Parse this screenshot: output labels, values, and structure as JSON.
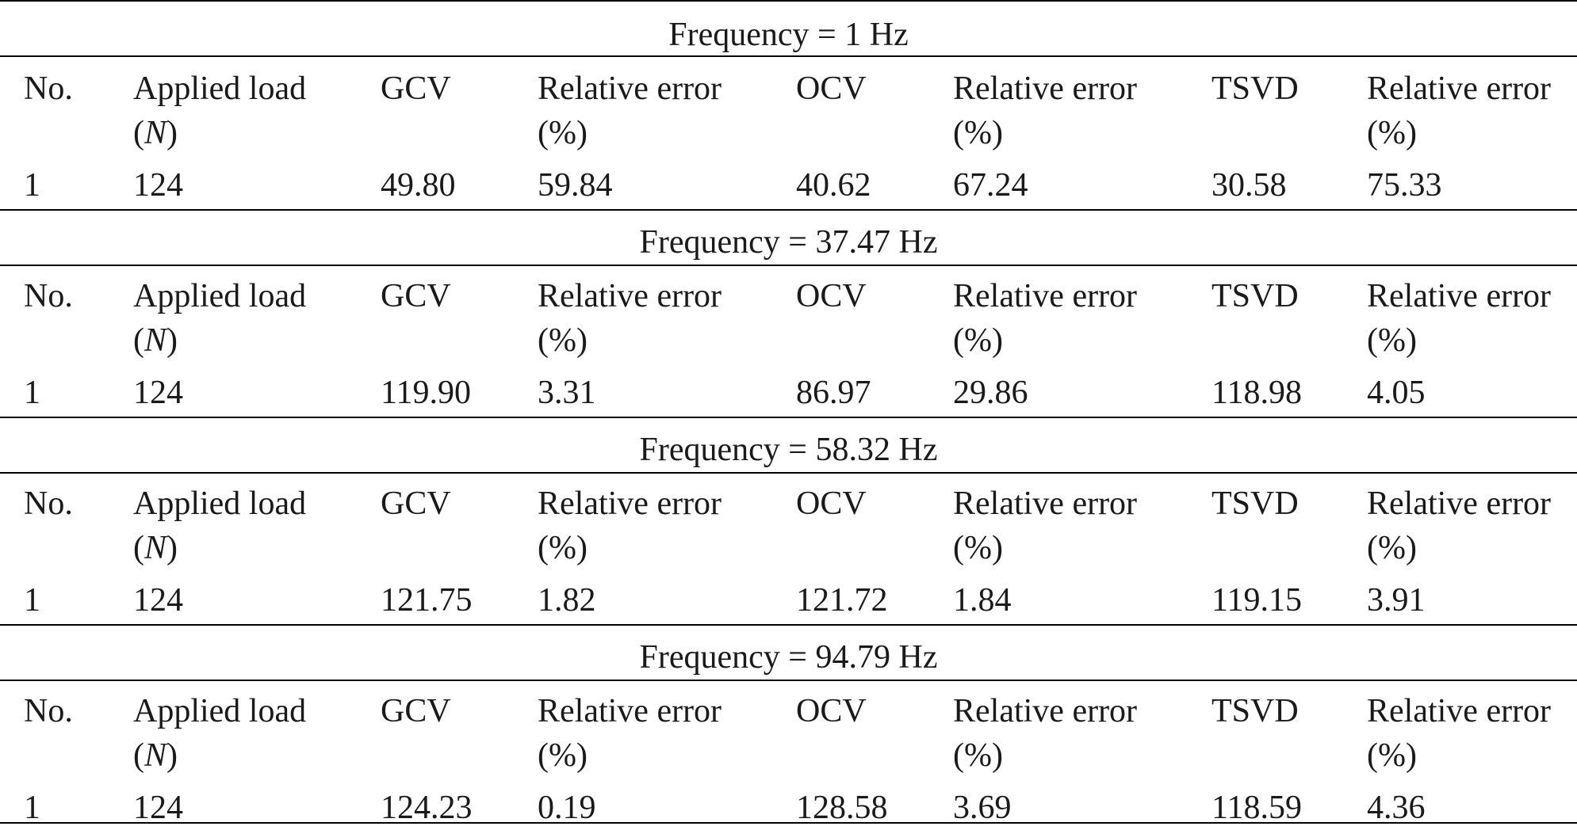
{
  "table": {
    "header_labels": {
      "no": "No.",
      "applied_load_line1": "Applied load",
      "applied_load_unit": "N",
      "gcv": "GCV",
      "relative_error_line1": "Relative error",
      "relative_error_line2": "(%)",
      "ocv": "OCV",
      "tsvd": "TSVD"
    },
    "sections": [
      {
        "frequency": "Frequency = 1 Hz",
        "row": {
          "no": "1",
          "load": "124",
          "gcv": "49.80",
          "gcv_err": "59.84",
          "ocv": "40.62",
          "ocv_err": "67.24",
          "tsvd": "30.58",
          "tsvd_err": "75.33"
        }
      },
      {
        "frequency": "Frequency = 37.47 Hz",
        "row": {
          "no": "1",
          "load": "124",
          "gcv": "119.90",
          "gcv_err": "3.31",
          "ocv": "86.97",
          "ocv_err": "29.86",
          "tsvd": "118.98",
          "tsvd_err": "4.05"
        }
      },
      {
        "frequency": "Frequency = 58.32 Hz",
        "row": {
          "no": "1",
          "load": "124",
          "gcv": "121.75",
          "gcv_err": "1.82",
          "ocv": "121.72",
          "ocv_err": "1.84",
          "tsvd": "119.15",
          "tsvd_err": "3.91"
        }
      },
      {
        "frequency": "Frequency = 94.79 Hz",
        "row": {
          "no": "1",
          "load": "124",
          "gcv": "124.23",
          "gcv_err": "0.19",
          "ocv": "128.58",
          "ocv_err": "3.69",
          "tsvd": "118.59",
          "tsvd_err": "4.36"
        }
      }
    ]
  }
}
